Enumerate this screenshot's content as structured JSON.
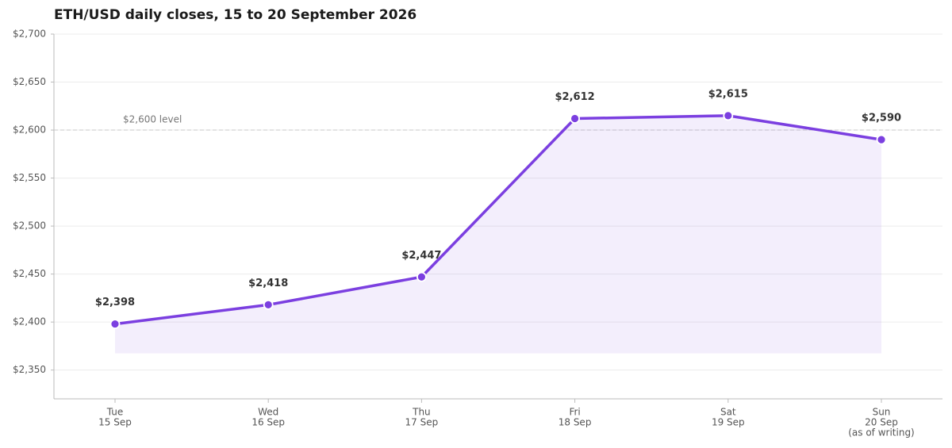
{
  "chart_data": {
    "type": "line",
    "title": "ETH/USD daily closes, 15 to 20 September 2026",
    "categories": [
      [
        "Tue",
        "15 Sep"
      ],
      [
        "Wed",
        "16 Sep"
      ],
      [
        "Thu",
        "17 Sep"
      ],
      [
        "Fri",
        "18 Sep"
      ],
      [
        "Sat",
        "19 Sep"
      ],
      [
        "Sun",
        "20 Sep",
        "(as of writing)"
      ]
    ],
    "values": [
      2398,
      2418,
      2447,
      2612,
      2615,
      2590
    ],
    "value_labels": [
      "$2,398",
      "$2,418",
      "$2,447",
      "$2,612",
      "$2,615",
      "$2,590"
    ],
    "color": "#7b3fe0",
    "ylim": [
      2320,
      2700
    ],
    "yticks": [
      {
        "value": 2350,
        "label": "$2,350"
      },
      {
        "value": 2400,
        "label": "$2,400"
      },
      {
        "value": 2450,
        "label": "$2,450"
      },
      {
        "value": 2500,
        "label": "$2,500"
      },
      {
        "value": 2550,
        "label": "$2,550"
      },
      {
        "value": 2600,
        "label": "$2,600"
      },
      {
        "value": 2650,
        "label": "$2,650"
      },
      {
        "value": 2700,
        "label": "$2,700"
      }
    ],
    "grid": true,
    "reference_line": {
      "value": 2600,
      "label": "$2,600 level"
    }
  }
}
